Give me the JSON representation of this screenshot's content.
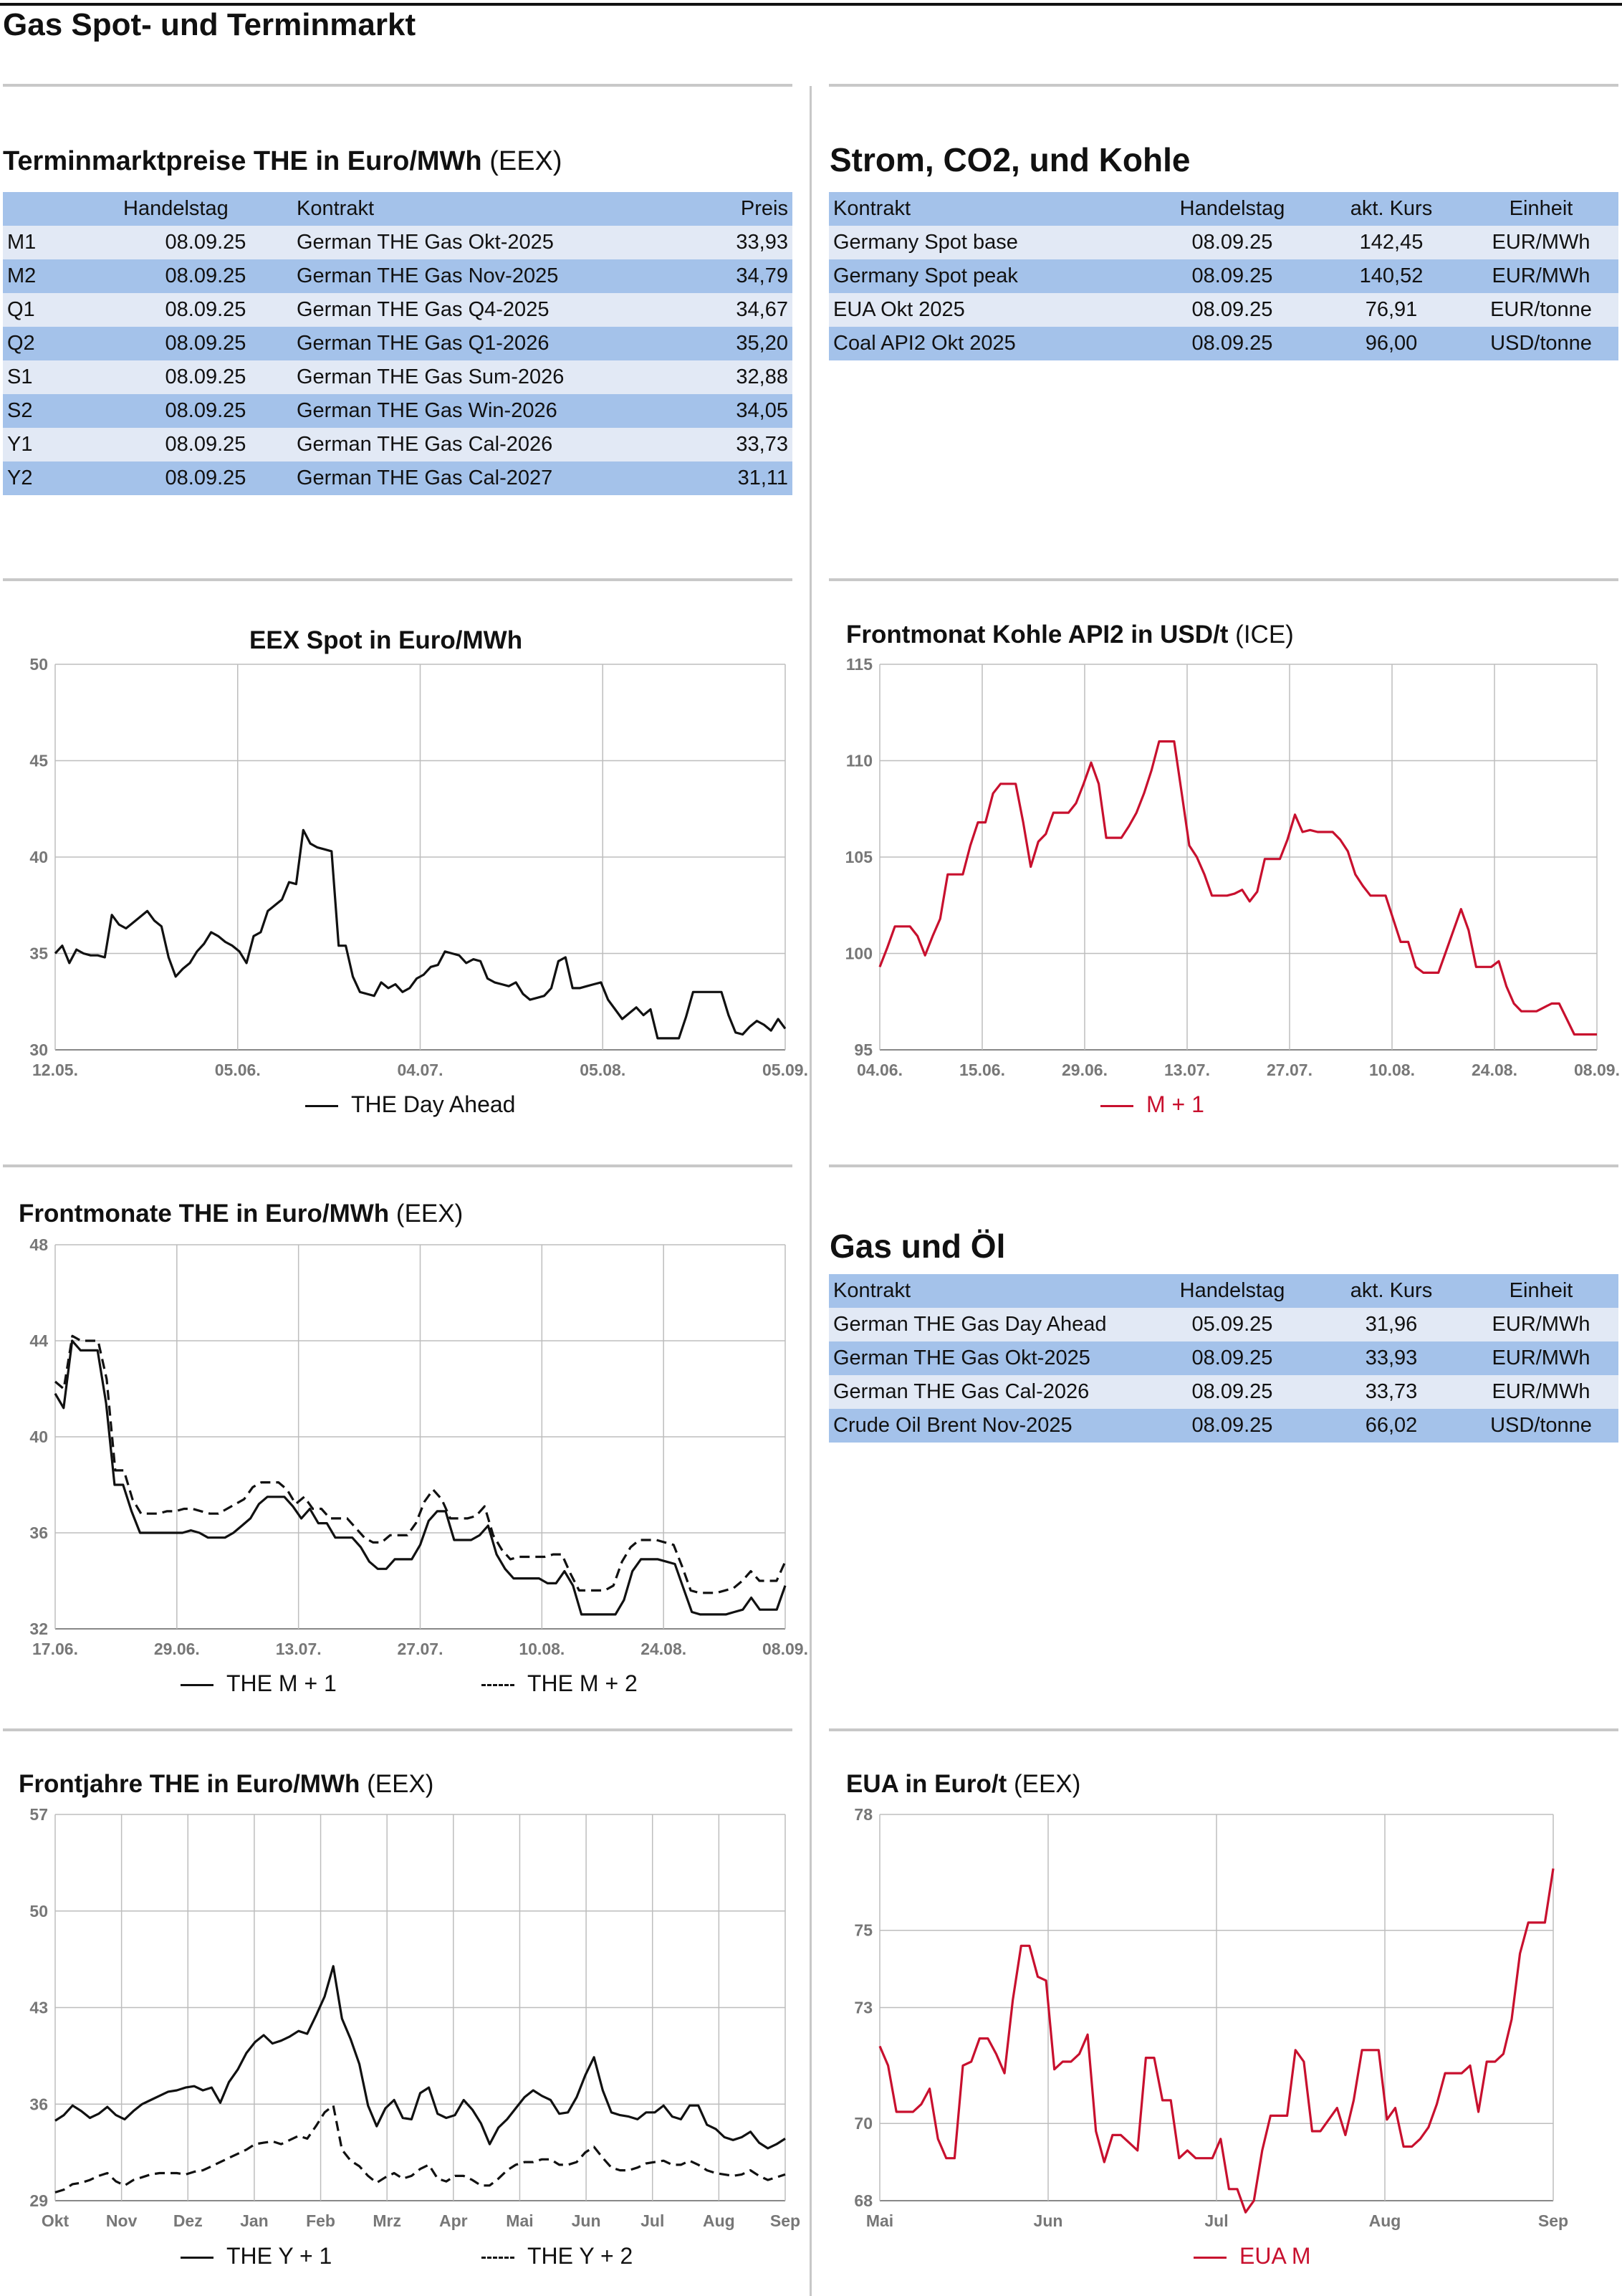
{
  "page": {
    "title": "Gas Spot- und Terminmarkt"
  },
  "termin": {
    "title": "Terminmarktpreise THE in Euro/MWh",
    "source": "(EEX)",
    "headers": [
      "",
      "Handelstag",
      "Kontrakt",
      "Preis"
    ],
    "rows": [
      [
        "M1",
        "08.09.25",
        "German THE Gas Okt-2025",
        "33,93"
      ],
      [
        "M2",
        "08.09.25",
        "German THE Gas Nov-2025",
        "34,79"
      ],
      [
        "Q1",
        "08.09.25",
        "German THE Gas Q4-2025",
        "34,67"
      ],
      [
        "Q2",
        "08.09.25",
        "German THE Gas Q1-2026",
        "35,20"
      ],
      [
        "S1",
        "08.09.25",
        "German THE Gas Sum-2026",
        "32,88"
      ],
      [
        "S2",
        "08.09.25",
        "German THE Gas Win-2026",
        "34,05"
      ],
      [
        "Y1",
        "08.09.25",
        "German THE Gas Cal-2026",
        "33,73"
      ],
      [
        "Y2",
        "08.09.25",
        "German THE Gas Cal-2027",
        "31,11"
      ]
    ]
  },
  "strom": {
    "title": "Strom, CO2, und Kohle",
    "headers": [
      "Kontrakt",
      "Handelstag",
      "akt. Kurs",
      "Einheit"
    ],
    "rows": [
      [
        "Germany Spot base",
        "08.09.25",
        "142,45",
        "EUR/MWh"
      ],
      [
        "Germany Spot peak",
        "08.09.25",
        "140,52",
        "EUR/MWh"
      ],
      [
        "EUA Okt 2025",
        "08.09.25",
        "76,91",
        "EUR/tonne"
      ],
      [
        "Coal API2 Okt 2025",
        "08.09.25",
        "96,00",
        "USD/tonne"
      ]
    ]
  },
  "gasoel": {
    "title": "Gas und Öl",
    "headers": [
      "Kontrakt",
      "Handelstag",
      "akt. Kurs",
      "Einheit"
    ],
    "rows": [
      [
        "German THE Gas Day Ahead",
        "05.09.25",
        "31,96",
        "EUR/MWh"
      ],
      [
        "German THE Gas Okt-2025",
        "08.09.25",
        "33,93",
        "EUR/MWh"
      ],
      [
        "German THE Gas Cal-2026",
        "08.09.25",
        "33,73",
        "EUR/MWh"
      ],
      [
        "Crude Oil Brent Nov-2025",
        "08.09.25",
        "66,02",
        "USD/tonne"
      ]
    ]
  },
  "chart_data": [
    {
      "id": "spot",
      "type": "line",
      "title": "EEX Spot in Euro/MWh",
      "source": "",
      "ylim": [
        30,
        50
      ],
      "yticks": [
        30,
        35,
        40,
        45,
        50
      ],
      "xticks": [
        "12.05.",
        "05.06.",
        "04.07.",
        "05.08.",
        "05.09."
      ],
      "grid": true,
      "legend_placement": "bottom",
      "series": [
        {
          "name": "THE Day Ahead",
          "color": "#111111",
          "dash": false,
          "values": [
            35,
            35.4,
            34.5,
            35.2,
            35,
            34.9,
            34.9,
            34.8,
            37,
            36.5,
            36.3,
            36.6,
            36.9,
            37.2,
            36.7,
            36.4,
            34.8,
            33.8,
            34.2,
            34.5,
            35.1,
            35.5,
            36.1,
            35.9,
            35.6,
            35.4,
            35.1,
            34.5,
            35.9,
            36.1,
            37.2,
            37.5,
            37.8,
            38.7,
            38.6,
            41.4,
            40.7,
            40.5,
            40.4,
            40.3,
            35.4,
            35.4,
            33.8,
            33,
            32.9,
            32.8,
            33.5,
            33.2,
            33.4,
            33,
            33.2,
            33.7,
            33.9,
            34.3,
            34.4,
            35.1,
            35,
            34.9,
            34.5,
            34.7,
            34.6,
            33.7,
            33.5,
            33.4,
            33.3,
            33.5,
            32.9,
            32.6,
            32.7,
            32.8,
            33.2,
            34.6,
            34.8,
            33.2,
            33.2,
            33.3,
            33.4,
            33.5,
            32.6,
            32.1,
            31.6,
            31.9,
            32.2,
            31.8,
            32.1,
            30.6,
            30.6,
            30.6,
            30.6,
            31.7,
            33,
            33,
            33,
            33,
            33,
            31.8,
            30.9,
            30.8,
            31.2,
            31.5,
            31.3,
            31,
            31.6,
            31.1
          ]
        }
      ]
    },
    {
      "id": "kohle",
      "type": "line",
      "title": "Frontmonat Kohle API2 in USD/t",
      "source": "(ICE)",
      "ylim": [
        95,
        115
      ],
      "yticks": [
        95,
        100,
        105,
        110,
        115
      ],
      "xticks": [
        "04.06.",
        "15.06.",
        "29.06.",
        "13.07.",
        "27.07.",
        "10.08.",
        "24.08.",
        "08.09."
      ],
      "grid": true,
      "legend_placement": "bottom",
      "series": [
        {
          "name": "M + 1",
          "color": "#c8102e",
          "dash": false,
          "values": [
            99.3,
            100.3,
            101.4,
            101.4,
            101.4,
            100.9,
            99.9,
            100.9,
            101.8,
            104.1,
            104.1,
            104.1,
            105.6,
            106.8,
            106.8,
            108.3,
            108.8,
            108.8,
            108.8,
            106.8,
            104.5,
            105.8,
            106.2,
            107.3,
            107.3,
            107.3,
            107.8,
            108.8,
            109.9,
            108.8,
            106,
            106,
            106,
            106.6,
            107.3,
            108.3,
            109.5,
            111,
            111,
            111,
            108.3,
            105.6,
            105,
            104.1,
            103,
            103,
            103,
            103.1,
            103.3,
            102.7,
            103.2,
            104.9,
            104.9,
            104.9,
            105.9,
            107.2,
            106.3,
            106.4,
            106.3,
            106.3,
            106.3,
            105.9,
            105.3,
            104.1,
            103.5,
            103,
            103,
            103,
            101.8,
            100.6,
            100.6,
            99.3,
            99,
            99,
            99,
            100.1,
            101.2,
            102.3,
            101.2,
            99.3,
            99.3,
            99.3,
            99.6,
            98.3,
            97.4,
            97,
            97,
            97,
            97.2,
            97.4,
            97.4,
            96.6,
            95.8,
            95.8,
            95.8,
            95.8
          ]
        }
      ]
    },
    {
      "id": "frontmonate",
      "type": "line",
      "title": "Frontmonate THE in Euro/MWh",
      "source": "(EEX)",
      "ylim": [
        32,
        48
      ],
      "yticks": [
        32,
        36,
        40,
        44,
        48
      ],
      "xticks": [
        "17.06.",
        "29.06.",
        "13.07.",
        "27.07.",
        "10.08.",
        "24.08.",
        "08.09."
      ],
      "grid": true,
      "legend_placement": "bottom",
      "series": [
        {
          "name": "THE M + 1",
          "color": "#111111",
          "dash": false,
          "values": [
            41.8,
            41.2,
            44,
            43.6,
            43.6,
            43.6,
            41.4,
            38,
            38,
            36.9,
            36,
            36,
            36,
            36,
            36,
            36,
            36.1,
            36,
            35.8,
            35.8,
            35.8,
            36,
            36.3,
            36.6,
            37.2,
            37.5,
            37.5,
            37.5,
            37.1,
            36.6,
            37,
            36.4,
            36.4,
            35.8,
            35.8,
            35.8,
            35.4,
            34.8,
            34.5,
            34.5,
            34.9,
            34.9,
            34.9,
            35.5,
            36.5,
            36.9,
            36.9,
            35.7,
            35.7,
            35.7,
            35.9,
            36.3,
            35.1,
            34.5,
            34.1,
            34.1,
            34.1,
            34.1,
            33.9,
            33.9,
            34.4,
            33.8,
            32.6,
            32.6,
            32.6,
            32.6,
            32.6,
            33.2,
            34.4,
            34.9,
            34.9,
            34.9,
            34.8,
            34.7,
            33.7,
            32.7,
            32.6,
            32.6,
            32.6,
            32.6,
            32.7,
            32.8,
            33.3,
            32.8,
            32.8,
            32.8,
            33.8
          ]
        },
        {
          "name": "THE M + 2",
          "color": "#111111",
          "dash": true,
          "values": [
            42.3,
            42,
            44.2,
            44,
            44,
            44,
            42.4,
            38.6,
            38.6,
            37.4,
            36.8,
            36.8,
            36.8,
            36.9,
            36.9,
            37,
            37,
            36.9,
            36.8,
            36.8,
            37,
            37.2,
            37.4,
            37.9,
            38.1,
            38.1,
            38.1,
            37.8,
            37.2,
            37.5,
            37,
            37,
            36.6,
            36.6,
            36.6,
            36.2,
            35.8,
            35.6,
            35.6,
            35.9,
            35.9,
            35.9,
            36.4,
            37.3,
            37.8,
            37.4,
            36.6,
            36.6,
            36.6,
            36.7,
            37.1,
            35.9,
            35.3,
            34.9,
            35,
            35,
            35,
            35,
            35.1,
            35.1,
            34.3,
            33.6,
            33.6,
            33.6,
            33.6,
            33.8,
            34.8,
            35.4,
            35.7,
            35.7,
            35.7,
            35.6,
            35.5,
            34.6,
            33.6,
            33.5,
            33.5,
            33.5,
            33.6,
            33.7,
            34,
            34.4,
            34,
            34,
            34,
            34.8
          ]
        }
      ]
    },
    {
      "id": "frontjahre",
      "type": "line",
      "title": "Frontjahre THE in Euro/MWh",
      "source": "(EEX)",
      "ylim": [
        29,
        57
      ],
      "yticks": [
        29,
        36,
        43,
        50,
        57
      ],
      "xticks": [
        "Okt",
        "Nov",
        "Dez",
        "Jan",
        "Feb",
        "Mrz",
        "Apr",
        "Mai",
        "Jun",
        "Jul",
        "Aug",
        "Sep"
      ],
      "grid": true,
      "legend_placement": "bottom",
      "series": [
        {
          "name": "THE Y + 1",
          "color": "#111111",
          "dash": false,
          "values": [
            34.8,
            35.2,
            35.9,
            35.5,
            35,
            35.3,
            35.8,
            35.2,
            34.9,
            35.5,
            36,
            36.3,
            36.6,
            36.9,
            37,
            37.2,
            37.3,
            37,
            37.2,
            36.1,
            37.6,
            38.5,
            39.7,
            40.5,
            41,
            40.4,
            40.6,
            40.9,
            41.3,
            41.1,
            42.4,
            43.8,
            46,
            42.2,
            40.7,
            38.9,
            35.9,
            34.4,
            35.7,
            36.3,
            35,
            34.9,
            36.8,
            37.2,
            35.3,
            35,
            35.2,
            36.3,
            35.6,
            34.6,
            33.1,
            34.3,
            34.9,
            35.7,
            36.5,
            37,
            36.6,
            36.3,
            35.3,
            35.4,
            36.5,
            38.1,
            39.4,
            37,
            35.4,
            35.2,
            35.1,
            34.9,
            35.4,
            35.4,
            35.9,
            35.1,
            34.9,
            35.9,
            35.9,
            34.5,
            34.2,
            33.6,
            33.4,
            33.6,
            34,
            33.2,
            32.8,
            33.1,
            33.5
          ]
        },
        {
          "name": "THE Y + 2",
          "color": "#111111",
          "dash": true,
          "values": [
            29.6,
            29.8,
            30.2,
            30.3,
            30.5,
            30.8,
            31,
            30.4,
            30.1,
            30.5,
            30.7,
            30.9,
            31,
            31,
            31,
            30.9,
            31.1,
            31.2,
            31.5,
            31.8,
            32.1,
            32.4,
            32.7,
            33.1,
            33.2,
            33.3,
            33.1,
            33.4,
            33.7,
            33.5,
            34.4,
            35.4,
            35.9,
            32.7,
            31.9,
            31.5,
            30.8,
            30.3,
            30.7,
            31,
            30.6,
            30.8,
            31.3,
            31.6,
            30.6,
            30.4,
            30.8,
            30.8,
            30.5,
            30.1,
            30.1,
            30.6,
            31.2,
            31.6,
            31.8,
            31.8,
            32,
            32,
            31.6,
            31.6,
            31.8,
            32.5,
            32.9,
            32.1,
            31.4,
            31.2,
            31.2,
            31.4,
            31.7,
            31.8,
            31.9,
            31.6,
            31.6,
            31.9,
            31.6,
            31.2,
            31,
            30.9,
            30.8,
            30.9,
            31.2,
            30.8,
            30.5,
            30.7,
            30.9
          ]
        }
      ]
    },
    {
      "id": "eua",
      "type": "line",
      "title": "EUA in Euro/t",
      "source": "(EEX)",
      "ylim": [
        68,
        78
      ],
      "yticks": [
        68,
        70,
        73,
        75,
        78
      ],
      "xticks": [
        "Mai",
        "Jun",
        "Jul",
        "Aug",
        "Sep"
      ],
      "grid": true,
      "legend_placement": "bottom",
      "series": [
        {
          "name": "EUA M",
          "color": "#c8102e",
          "dash": false,
          "values": [
            72,
            71.5,
            70.3,
            70.3,
            70.3,
            70.5,
            70.9,
            69.6,
            69.1,
            69.1,
            71.5,
            71.6,
            72.2,
            72.2,
            71.8,
            71.3,
            73.2,
            74.6,
            74.6,
            73.8,
            73.7,
            71.4,
            71.6,
            71.6,
            71.8,
            72.3,
            69.8,
            69,
            69.7,
            69.7,
            69.5,
            69.3,
            71.7,
            71.7,
            70.6,
            70.6,
            69.1,
            69.3,
            69.1,
            69.1,
            69.1,
            69.6,
            68.3,
            68.3,
            67.7,
            68,
            69.3,
            70.2,
            70.2,
            70.2,
            71.9,
            71.6,
            69.8,
            69.8,
            70.1,
            70.4,
            69.7,
            70.6,
            71.9,
            71.9,
            71.9,
            70.1,
            70.4,
            69.4,
            69.4,
            69.6,
            69.9,
            70.5,
            71.3,
            71.3,
            71.3,
            71.5,
            70.3,
            71.6,
            71.6,
            71.8,
            72.7,
            74.4,
            75.2,
            75.2,
            75.2,
            76.6
          ]
        }
      ]
    }
  ]
}
